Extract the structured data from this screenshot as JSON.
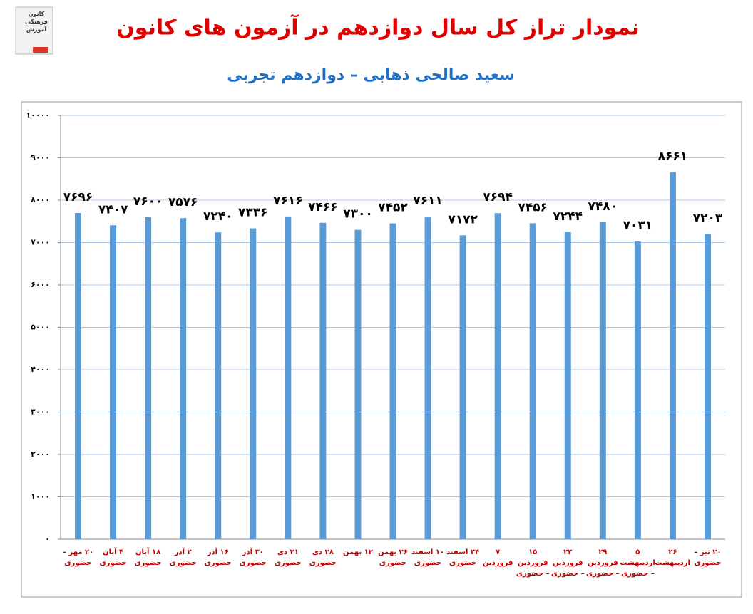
{
  "logo_text": "کانون فرهنگی آموزش",
  "chart_data": {
    "type": "bar",
    "title": "نمودار تراز کل سال دوازدهم در آزمون های کانون",
    "subtitle": "سعید صالحی ذهابی – دوازدهم تجربی",
    "categories": [
      "۲۰ مهر – حضوری",
      "۴ آبان حضوری",
      "۱۸ آبان حضوری",
      "۲ آذر حضوری",
      "۱۶ آذر حضوری",
      "۳۰ آذر حضوری",
      "۲۱ دی حضوری",
      "۲۸ دی حضوری",
      "۱۲ بهمن",
      "۲۶ بهمن حضوری",
      "۱۰ اسفند حضوری",
      "۲۴ اسفند حضوری",
      "۷ فروردین",
      "۱۵ فروردین – حضوری",
      "۲۲ فروردین – حضوری",
      "۲۹ فروردین – حضوری",
      "۵ اردیبهشت – حضوری",
      "۲۶ اردیبهشت",
      "۲۰ تیر – حضوری"
    ],
    "values": [
      7696,
      7407,
      7600,
      7576,
      7240,
      7336,
      7616,
      7466,
      7300,
      7452,
      7611,
      7172,
      7694,
      7456,
      7244,
      7480,
      7031,
      8661,
      7203
    ],
    "value_labels": [
      "۷۶۹۶",
      "۷۴۰۷",
      "۷۶۰۰",
      "۷۵۷۶",
      "۷۲۴۰",
      "۷۳۳۶",
      "۷۶۱۶",
      "۷۴۶۶",
      "۷۳۰۰",
      "۷۴۵۲",
      "۷۶۱۱",
      "۷۱۷۲",
      "۷۶۹۴",
      "۷۴۵۶",
      "۷۲۴۴",
      "۷۴۸۰",
      "۷۰۳۱",
      "۸۶۶۱",
      "۷۲۰۳"
    ],
    "color": "#5b9bd5",
    "ylim": [
      0,
      10000
    ],
    "yticks": [
      {
        "value": 0,
        "label": "۰"
      },
      {
        "value": 1000,
        "label": "۱۰۰۰"
      },
      {
        "value": 2000,
        "label": "۲۰۰۰"
      },
      {
        "value": 3000,
        "label": "۳۰۰۰"
      },
      {
        "value": 4000,
        "label": "۴۰۰۰"
      },
      {
        "value": 5000,
        "label": "۵۰۰۰"
      },
      {
        "value": 6000,
        "label": "۶۰۰۰"
      },
      {
        "value": 7000,
        "label": "۷۰۰۰"
      },
      {
        "value": 8000,
        "label": "۸۰۰۰"
      },
      {
        "value": 9000,
        "label": "۹۰۰۰"
      },
      {
        "value": 10000,
        "label": "۱۰۰۰۰"
      }
    ],
    "grid": true
  }
}
